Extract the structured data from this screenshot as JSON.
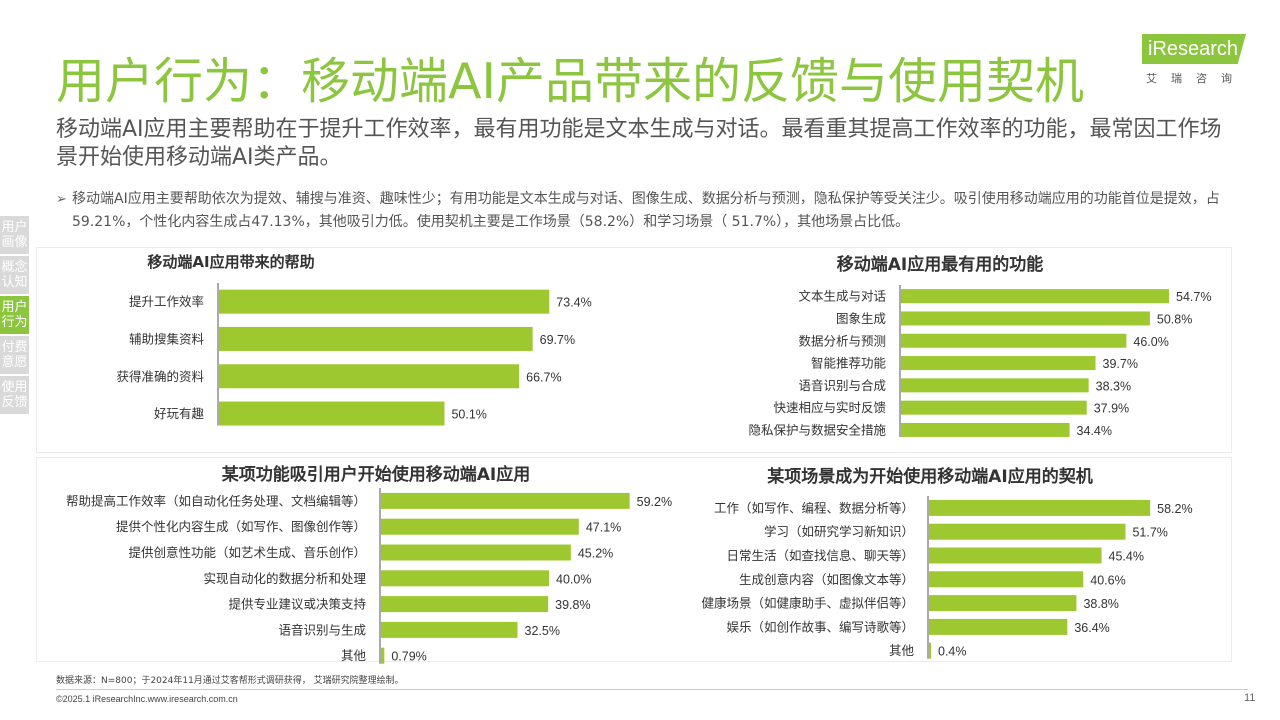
{
  "header": {
    "title": "用户行为：移动端AI产品带来的反馈与使用契机",
    "logo_word": "iResearch",
    "logo_sub": "艾瑞咨询"
  },
  "subtitle": "移动端AI应用主要帮助在于提升工作效率，最有用功能是文本生成与对话。最看重其提高工作效率的功能，最常因工作场景开始使用移动端AI类产品。",
  "bullet": {
    "arrow": "➢",
    "text": "移动端AI应用主要帮助依次为提效、辅搜与准资、趣味性少；有用功能是文本生成与对话、图像生成、数据分析与预测，隐私保护等受关注少。吸引使用移动端应用的功能首位是提效，占59.21%，个性化内容生成占47.13%，其他吸引力低。使用契机主要是工作场景（58.2%）和学习场景（ 51.7%），其他场景占比低。"
  },
  "side_nav": [
    {
      "label": "用户画像",
      "active": false
    },
    {
      "label": "概念认知",
      "active": false
    },
    {
      "label": "用户行为",
      "active": true
    },
    {
      "label": "付费意愿",
      "active": false
    },
    {
      "label": "使用反馈",
      "active": false
    }
  ],
  "colors": {
    "accent": "#8cc63f",
    "bar": "#9dc82f",
    "nav_inactive": "#d9d9d9"
  },
  "chart_data": [
    {
      "type": "bar",
      "orientation": "horizontal",
      "title": "移动端AI应用带来的帮助",
      "categories": [
        "提升工作效率",
        "辅助搜集资料",
        "获得准确的资料",
        "好玩有趣"
      ],
      "values": [
        73.4,
        69.7,
        66.7,
        50.1
      ],
      "value_labels": [
        "73.4%",
        "69.7%",
        "66.7%",
        "50.1%"
      ],
      "xlim": [
        0,
        100
      ],
      "grid": false
    },
    {
      "type": "bar",
      "orientation": "horizontal",
      "title": "移动端AI应用最有用的功能",
      "categories": [
        "文本生成与对话",
        "图象生成",
        "数据分析与预测",
        "智能推荐功能",
        "语音识别与合成",
        "快速相应与实时反馈",
        "隐私保护与数据安全措施"
      ],
      "values": [
        54.7,
        50.8,
        46.0,
        39.7,
        38.3,
        37.9,
        34.4
      ],
      "value_labels": [
        "54.7%",
        "50.8%",
        "46.0%",
        "39.7%",
        "38.3%",
        "37.9%",
        "34.4%"
      ],
      "xlim": [
        0,
        100
      ],
      "grid": false
    },
    {
      "type": "bar",
      "orientation": "horizontal",
      "title": "某项功能吸引用户开始使用移动端AI应用",
      "categories": [
        "帮助提高工作效率（如自动化任务处理、文档编辑等）",
        "提供个性化内容生成（如写作、图像创作等）",
        "提供创意性功能（如艺术生成、音乐创作）",
        "实现自动化的数据分析和处理",
        "提供专业建议或决策支持",
        "语音识别与生成",
        "其他"
      ],
      "values": [
        59.2,
        47.1,
        45.2,
        40.0,
        39.8,
        32.5,
        0.79
      ],
      "value_labels": [
        "59.2%",
        "47.1%",
        "45.2%",
        "40.0%",
        "39.8%",
        "32.5%",
        "0.79%"
      ],
      "xlim": [
        0,
        100
      ],
      "grid": false
    },
    {
      "type": "bar",
      "orientation": "horizontal",
      "title": "某项场景成为开始使用移动端AI应用的契机",
      "categories": [
        "工作（如写作、编程、数据分析等）",
        "学习（如研究学习新知识）",
        "日常生活（如查找信息、聊天等）",
        "生成创意内容（如图像文本等）",
        "健康场景（如健康助手、虚拟伴侣等）",
        "娱乐（如创作故事、编写诗歌等）",
        "其他"
      ],
      "values": [
        58.2,
        51.7,
        45.4,
        40.6,
        38.8,
        36.4,
        0.4
      ],
      "value_labels": [
        "58.2%",
        "51.7%",
        "45.4%",
        "40.6%",
        "38.8%",
        "36.4%",
        "0.4%"
      ],
      "xlim": [
        0,
        100
      ],
      "grid": false
    }
  ],
  "footer": {
    "source": "数据来源：N=800；于2024年11月通过艾客帮形式调研获得， 艾瑞研究院整理绘制。",
    "copyright": "©2025.1 iResearchInc.www.iresearch.com.cn",
    "page_number": "11"
  }
}
